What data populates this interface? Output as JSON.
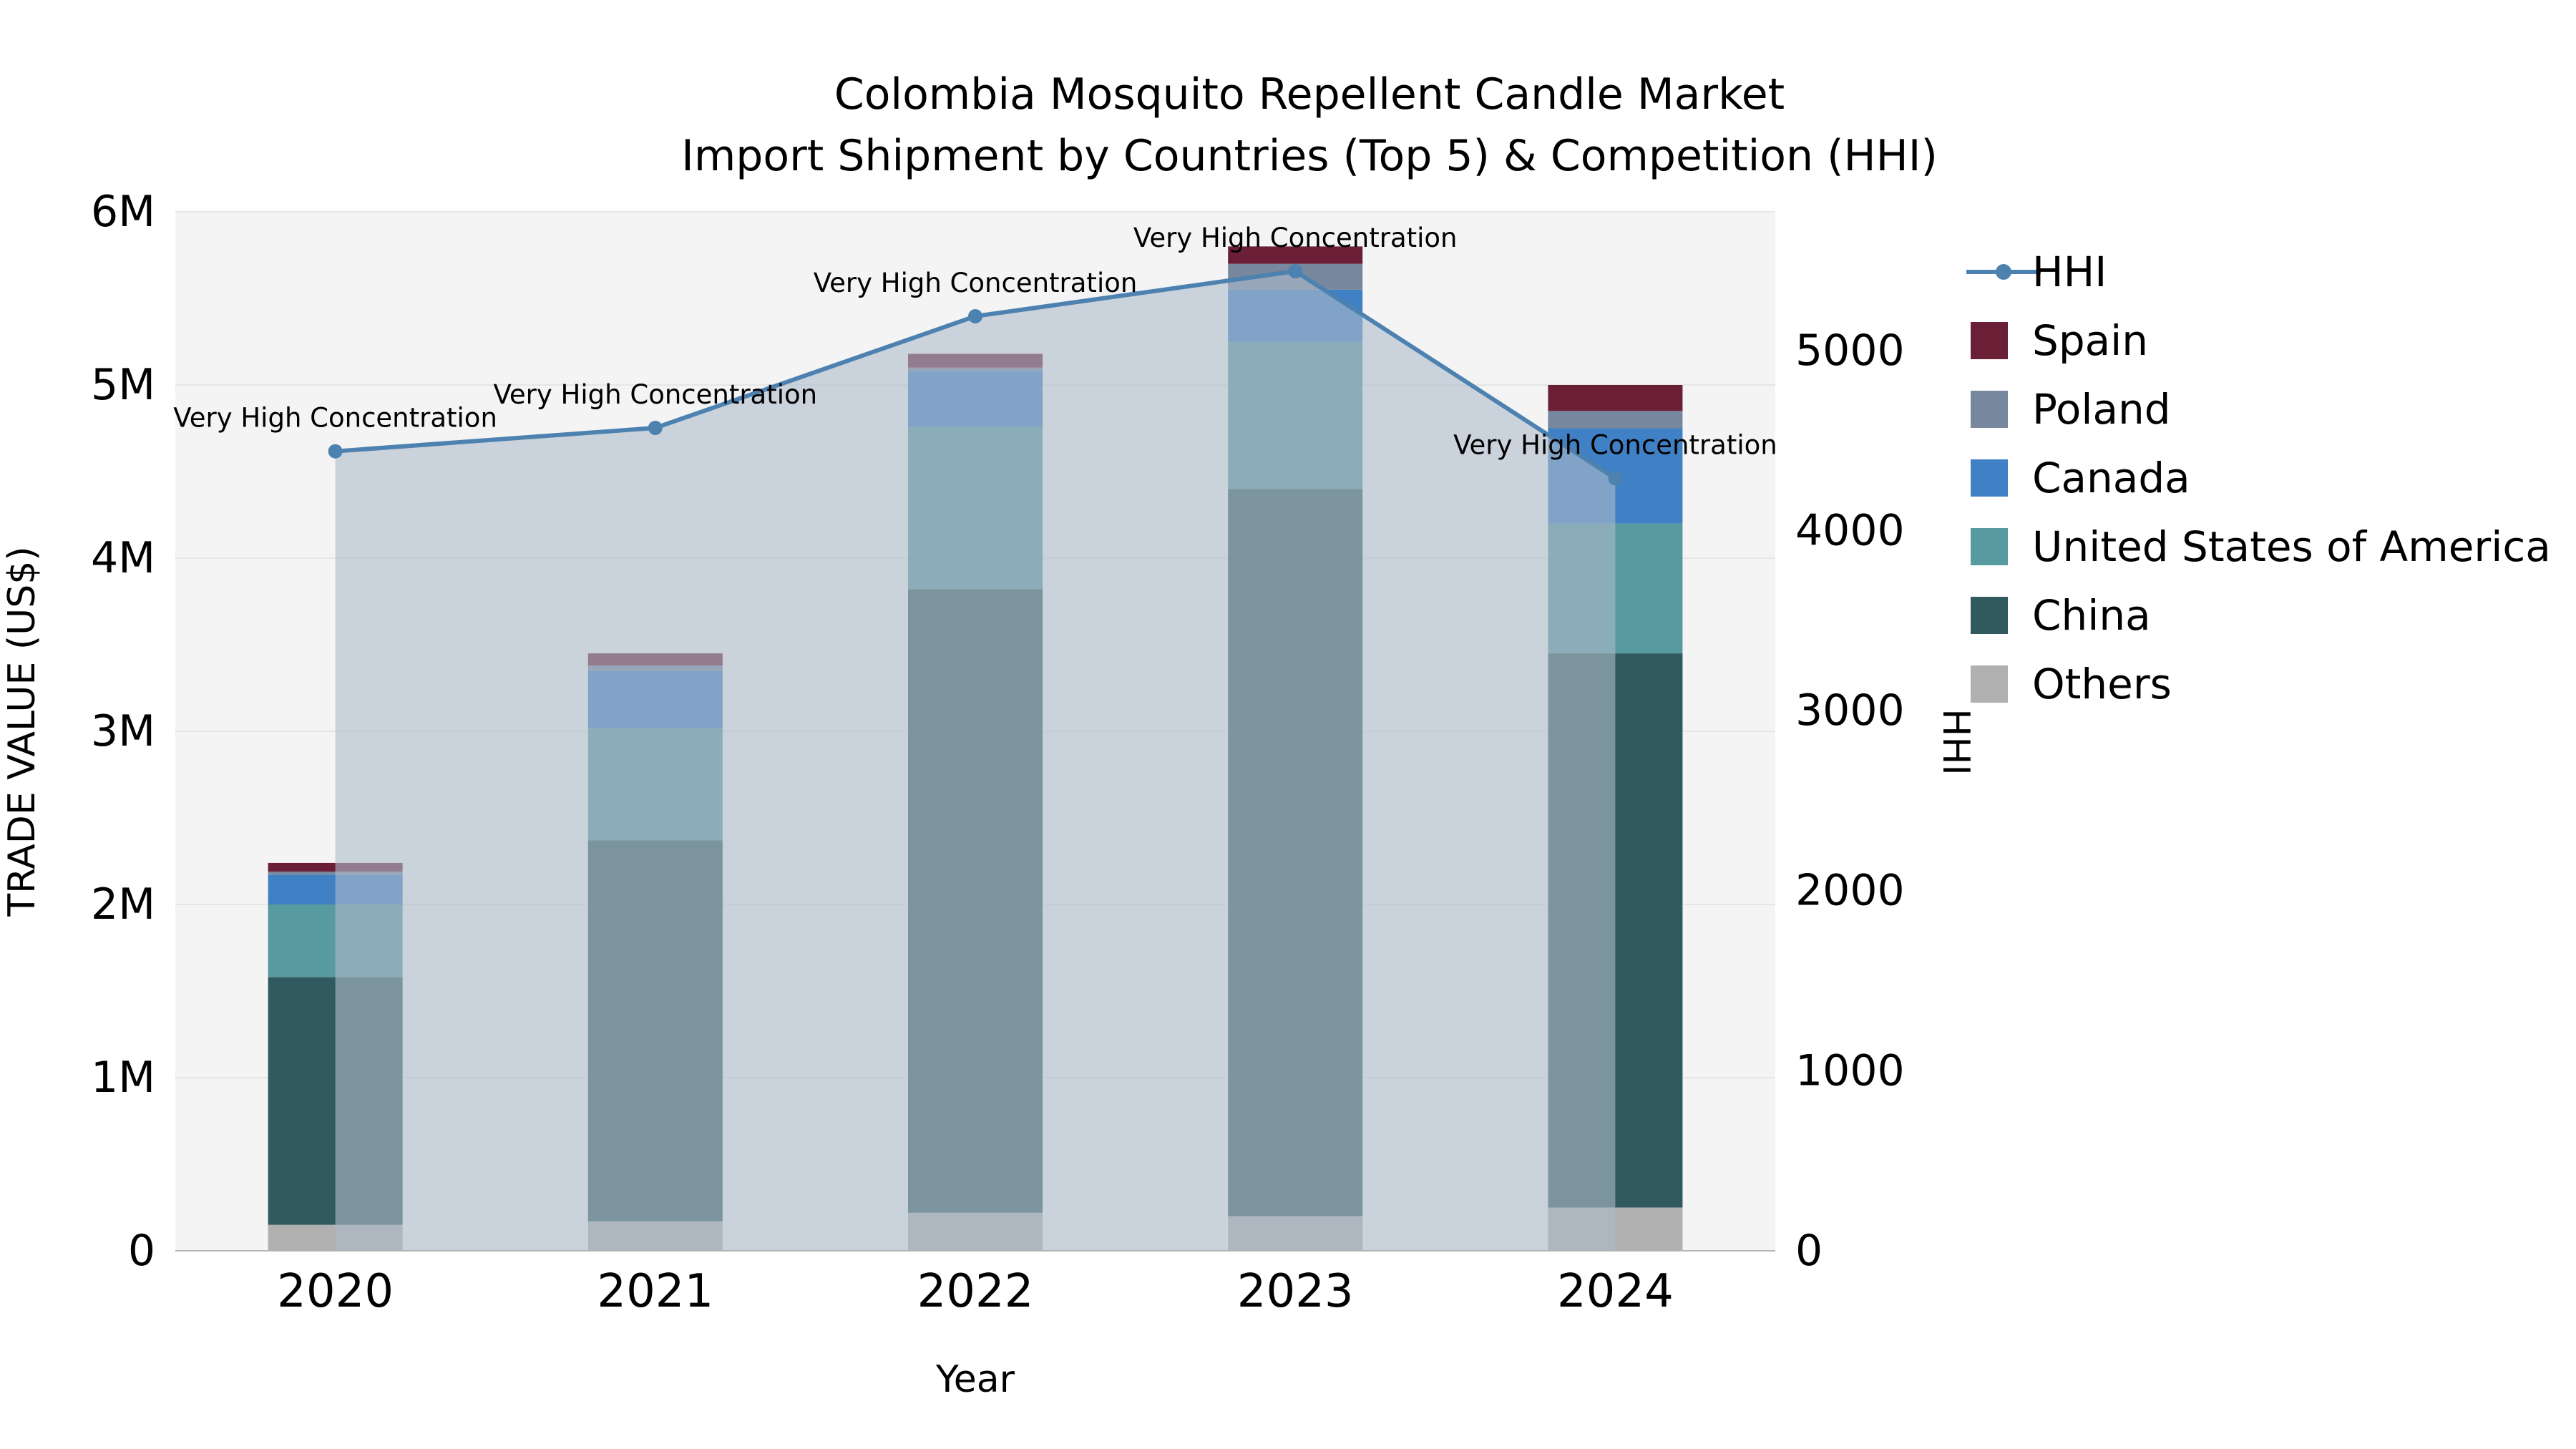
{
  "chart_data": {
    "type": "bar",
    "subtype": "stacked-bar-with-line",
    "title": "Colombia Mosquito Repellent Candle Market",
    "subtitle": "Import Shipment by Countries (Top 5) & Competition (HHI)",
    "xlabel": "Year",
    "ylabel_left": "TRADE VALUE (US$)",
    "ylabel_right": "HHI",
    "categories": [
      "2020",
      "2021",
      "2022",
      "2023",
      "2024"
    ],
    "bar_series": [
      {
        "name": "Others",
        "color": "#b0b0b0",
        "values": [
          150000,
          170000,
          220000,
          200000,
          250000
        ]
      },
      {
        "name": "China",
        "color": "#315a5e",
        "values": [
          1430000,
          2200000,
          3600000,
          4200000,
          3200000
        ]
      },
      {
        "name": "United States of America",
        "color": "#579aa0",
        "values": [
          420000,
          650000,
          940000,
          850000,
          750000
        ]
      },
      {
        "name": "Canada",
        "color": "#4080c4",
        "values": [
          170000,
          330000,
          320000,
          300000,
          550000
        ]
      },
      {
        "name": "Poland",
        "color": "#76879e",
        "values": [
          20000,
          30000,
          20000,
          150000,
          100000
        ]
      },
      {
        "name": "Spain",
        "color": "#6b1f37",
        "values": [
          50000,
          70000,
          80000,
          100000,
          150000
        ]
      }
    ],
    "line_series": {
      "name": "HHI",
      "color": "#4d82b0",
      "area_fill": "rgba(174,186,202,0.6)",
      "values": [
        4440,
        4570,
        5190,
        5440,
        4290
      ]
    },
    "annotations": [
      "Very High Concentration",
      "Very High Concentration",
      "Very High Concentration",
      "Very High Concentration",
      "Very High Concentration"
    ],
    "left_axis": {
      "max": 6000000,
      "ticks": [
        {
          "value": 0,
          "label": "0"
        },
        {
          "value": 1000000,
          "label": "1M"
        },
        {
          "value": 2000000,
          "label": "2M"
        },
        {
          "value": 3000000,
          "label": "3M"
        },
        {
          "value": 4000000,
          "label": "4M"
        },
        {
          "value": 5000000,
          "label": "5M"
        },
        {
          "value": 6000000,
          "label": "6M"
        }
      ]
    },
    "right_axis": {
      "max": 5770,
      "ticks": [
        {
          "value": 0,
          "label": "0"
        },
        {
          "value": 1000,
          "label": "1000"
        },
        {
          "value": 2000,
          "label": "2000"
        },
        {
          "value": 3000,
          "label": "3000"
        },
        {
          "value": 4000,
          "label": "4000"
        },
        {
          "value": 5000,
          "label": "5000"
        }
      ]
    },
    "legend_order": [
      "HHI",
      "Spain",
      "Poland",
      "Canada",
      "United States of America",
      "China",
      "Others"
    ],
    "plot_bg": "#f4f4f4",
    "grid_color": "#e6e6e6",
    "grid": "on",
    "legend_position": "right-top"
  }
}
